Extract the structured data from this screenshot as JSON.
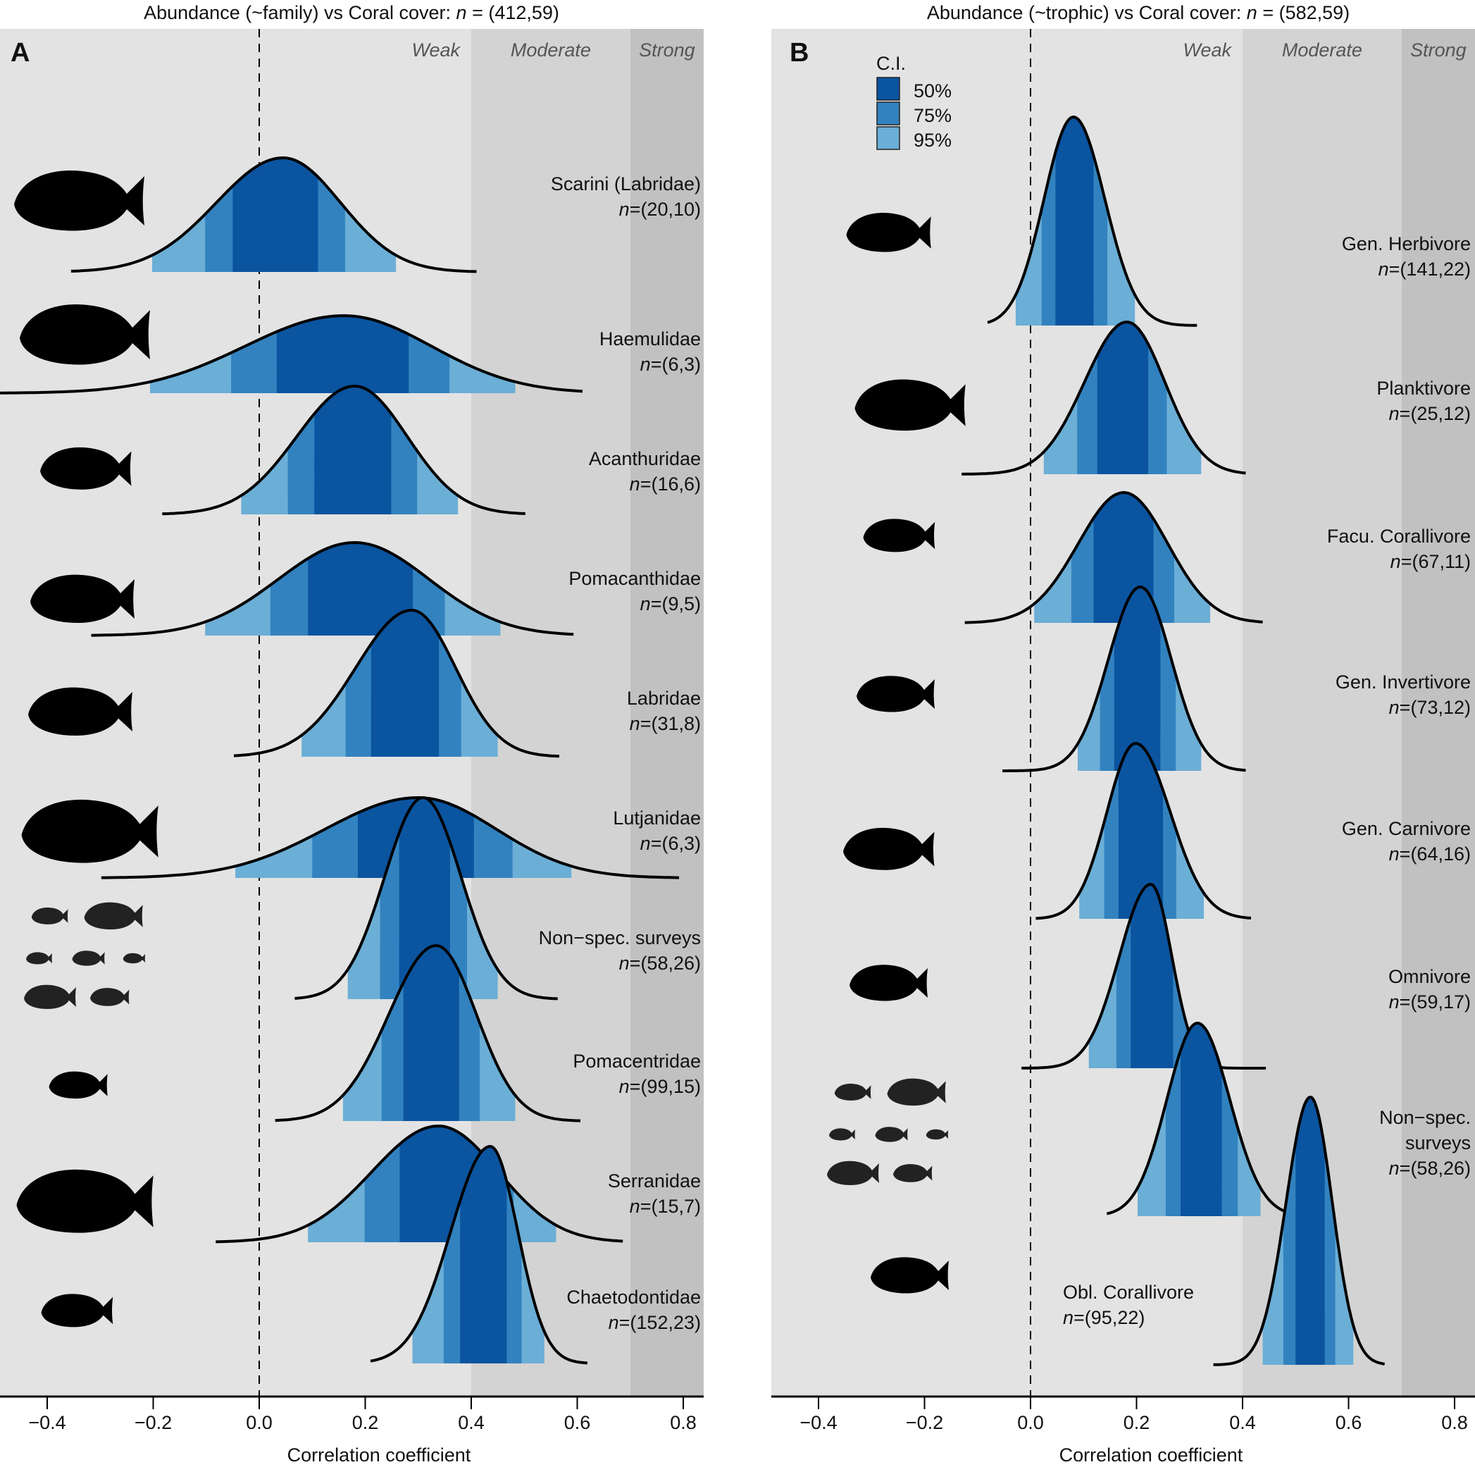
{
  "colors": {
    "ci50": "#0b549f",
    "ci75": "#3282bf",
    "ci95": "#6baed6",
    "weak_bg": "#e3e3e3",
    "moderate_bg": "#d3d3d3",
    "strong_bg": "#c1c1c1",
    "curve": "#000000"
  },
  "chart_data": [
    {
      "type": "area",
      "panel": "A",
      "title": "Abundance (~family) vs Coral cover: n = (412,59)",
      "title_prefix": "Abundance (~family) vs Coral cover: ",
      "title_n": "n",
      "title_suffix": " = (412,59)",
      "xlabel": "Correlation coefficient",
      "xlim": [
        -0.49,
        0.84
      ],
      "xticks": [
        -0.4,
        -0.2,
        0.0,
        0.2,
        0.4,
        0.6,
        0.8
      ],
      "xtick_labels": [
        "−0.4",
        "−0.2",
        "0.0",
        "0.2",
        "0.4",
        "0.6",
        "0.8"
      ],
      "reference_line": 0.0,
      "zones": [
        {
          "label": "Weak",
          "from": -0.49,
          "to": 0.4
        },
        {
          "label": "Moderate",
          "from": 0.4,
          "to": 0.7
        },
        {
          "label": "Strong",
          "from": 0.7,
          "to": 0.84
        }
      ],
      "series": [
        {
          "name": "Scarini (Labridae)",
          "n": "=(20,10)",
          "mode": 0.045,
          "ci95": [
            -0.202,
            0.258
          ],
          "ci75": [
            -0.102,
            0.162
          ],
          "ci50": [
            -0.05,
            0.111
          ],
          "range": [
            -0.355,
            0.41
          ]
        },
        {
          "name": "Haemulidae",
          "n": "=(6,3)",
          "mode": 0.16,
          "ci95": [
            -0.206,
            0.483
          ],
          "ci75": [
            -0.053,
            0.359
          ],
          "ci50": [
            0.033,
            0.282
          ],
          "range": [
            -0.49,
            0.61
          ]
        },
        {
          "name": "Acanthuridae",
          "n": "=(16,6)",
          "mode": 0.18,
          "ci95": [
            -0.034,
            0.375
          ],
          "ci75": [
            0.054,
            0.298
          ],
          "ci50": [
            0.104,
            0.249
          ],
          "range": [
            -0.183,
            0.502
          ]
        },
        {
          "name": "Pomacanthidae",
          "n": "=(9,5)",
          "mode": 0.18,
          "ci95": [
            -0.102,
            0.455
          ],
          "ci75": [
            0.021,
            0.35
          ],
          "ci50": [
            0.092,
            0.29
          ],
          "range": [
            -0.317,
            0.593
          ]
        },
        {
          "name": "Labridae",
          "n": "=(31,8)",
          "mode": 0.288,
          "ci95": [
            0.08,
            0.45
          ],
          "ci75": [
            0.163,
            0.381
          ],
          "ci50": [
            0.211,
            0.339
          ],
          "range": [
            -0.048,
            0.566
          ]
        },
        {
          "name": "Lutjanidae",
          "n": "=(6,3)",
          "mode": 0.3,
          "ci95": [
            -0.045,
            0.589
          ],
          "ci75": [
            0.1,
            0.478
          ],
          "ci50": [
            0.186,
            0.405
          ],
          "range": [
            -0.298,
            0.792
          ]
        },
        {
          "name": "Non−spec. surveys",
          "n": "=(58,26)",
          "mode": 0.309,
          "ci95": [
            0.167,
            0.45
          ],
          "ci75": [
            0.228,
            0.392
          ],
          "ci50": [
            0.264,
            0.36
          ],
          "range": [
            0.067,
            0.563
          ]
        },
        {
          "name": "Pomacentridae",
          "n": "=(99,15)",
          "mode": 0.334,
          "ci95": [
            0.158,
            0.483
          ],
          "ci75": [
            0.231,
            0.416
          ],
          "ci50": [
            0.272,
            0.377
          ],
          "range": [
            0.03,
            0.606
          ]
        },
        {
          "name": "Serranidae",
          "n": "=(15,7)",
          "mode": 0.338,
          "ci95": [
            0.092,
            0.56
          ],
          "ci75": [
            0.199,
            0.48
          ],
          "ci50": [
            0.265,
            0.42
          ],
          "range": [
            -0.082,
            0.686
          ]
        },
        {
          "name": "Chaetodontidae",
          "n": "=(152,23)",
          "mode": 0.436,
          "ci95": [
            0.289,
            0.538
          ],
          "ci75": [
            0.348,
            0.495
          ],
          "ci50": [
            0.379,
            0.467
          ],
          "range": [
            0.21,
            0.619
          ]
        }
      ]
    },
    {
      "type": "area",
      "panel": "B",
      "title": "Abundance (~trophic) vs Coral cover: n = (582,59)",
      "title_prefix": "Abundance (~trophic) vs Coral cover: ",
      "title_n": "n",
      "title_suffix": " = (582,59)",
      "xlabel": "Correlation coefficient",
      "xlim": [
        -0.49,
        0.84
      ],
      "xticks": [
        -0.4,
        -0.2,
        0.0,
        0.2,
        0.4,
        0.6,
        0.8
      ],
      "xtick_labels": [
        "−0.4",
        "−0.2",
        "0.0",
        "0.2",
        "0.4",
        "0.6",
        "0.8"
      ],
      "reference_line": 0.0,
      "zones": [
        {
          "label": "Weak",
          "from": -0.49,
          "to": 0.4
        },
        {
          "label": "Moderate",
          "from": 0.4,
          "to": 0.7
        },
        {
          "label": "Strong",
          "from": 0.7,
          "to": 0.84
        }
      ],
      "legend": {
        "title": "C.I.",
        "placement": "top-left",
        "entries": [
          {
            "label": "50%",
            "key": "ci50"
          },
          {
            "label": "75%",
            "key": "ci75"
          },
          {
            "label": "95%",
            "key": "ci95"
          }
        ]
      },
      "series": [
        {
          "name": "Gen. Herbivore",
          "n": "=(141,22)",
          "mode": 0.081,
          "ci95": [
            -0.028,
            0.197
          ],
          "ci75": [
            0.021,
            0.145
          ],
          "ci50": [
            0.047,
            0.119
          ],
          "range": [
            -0.081,
            0.314
          ]
        },
        {
          "name": "Planktivore",
          "n": "=(25,12)",
          "mode": 0.182,
          "ci95": [
            0.025,
            0.322
          ],
          "ci75": [
            0.088,
            0.257
          ],
          "ci50": [
            0.126,
            0.222
          ],
          "range": [
            -0.13,
            0.406
          ]
        },
        {
          "name": "Facu. Corallivore",
          "n": "=(67,11)",
          "mode": 0.176,
          "ci95": [
            0.007,
            0.339
          ],
          "ci75": [
            0.077,
            0.271
          ],
          "ci50": [
            0.119,
            0.232
          ],
          "range": [
            -0.124,
            0.438
          ]
        },
        {
          "name": "Gen. Invertivore",
          "n": "=(73,12)",
          "mode": 0.207,
          "ci95": [
            0.089,
            0.322
          ],
          "ci75": [
            0.131,
            0.274
          ],
          "ci50": [
            0.158,
            0.245
          ],
          "range": [
            -0.053,
            0.406
          ]
        },
        {
          "name": "Gen. Carnivore",
          "n": "=(64,16)",
          "mode": 0.198,
          "ci95": [
            0.092,
            0.327
          ],
          "ci75": [
            0.139,
            0.275
          ],
          "ci50": [
            0.166,
            0.25
          ],
          "range": [
            0.01,
            0.416
          ]
        },
        {
          "name": "Omnivore",
          "n": "=(59,17)",
          "mode": 0.227,
          "ci95": [
            0.11,
            0.305
          ],
          "ci75": [
            0.162,
            0.298
          ],
          "ci50": [
            0.189,
            0.269
          ],
          "range": [
            -0.017,
            0.444
          ]
        },
        {
          "name": "Non−spec. surveys",
          "name_lines": [
            "Non−spec.",
            "surveys"
          ],
          "n": "=(58,26)",
          "mode": 0.315,
          "ci95": [
            0.202,
            0.434
          ],
          "ci75": [
            0.255,
            0.391
          ],
          "ci50": [
            0.283,
            0.361
          ],
          "range": [
            0.144,
            0.483
          ]
        },
        {
          "name": "Obl. Corallivore",
          "n": "=(95,22)",
          "mode": 0.528,
          "ci95": [
            0.438,
            0.609
          ],
          "ci75": [
            0.477,
            0.575
          ],
          "ci50": [
            0.5,
            0.555
          ],
          "range": [
            0.345,
            0.668
          ]
        }
      ]
    }
  ]
}
